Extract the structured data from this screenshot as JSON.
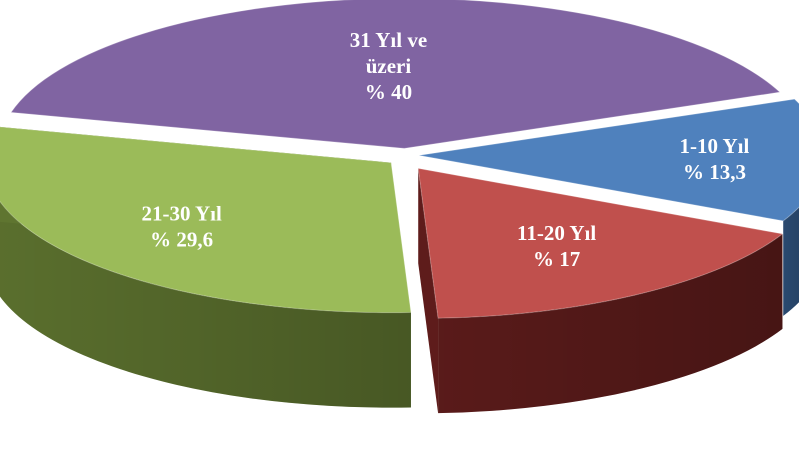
{
  "chart_data": {
    "type": "pie",
    "style": "3d-exploded",
    "categories": [
      "1-10 Yıl",
      "11-20 Yıl",
      "21-30 Yıl",
      "31 Yıl ve üzeri"
    ],
    "values": [
      13.3,
      17,
      29.6,
      40
    ],
    "value_labels": [
      "% 13,3",
      "% 17",
      "% 29,6",
      "% 40"
    ],
    "category_lines": [
      [
        "1-10 Yıl"
      ],
      [
        "11-20 Yıl"
      ],
      [
        "21-30 Yıl"
      ],
      [
        "31 Yıl ve",
        "üzeri"
      ]
    ],
    "colors": [
      "#4f81bd",
      "#c0504d",
      "#9bbb59",
      "#8064a2"
    ],
    "side_colors": [
      "#2c4d75",
      "#5e1c1b",
      "#5f7530",
      "#4d3b62"
    ],
    "title": "",
    "legend": "none"
  }
}
